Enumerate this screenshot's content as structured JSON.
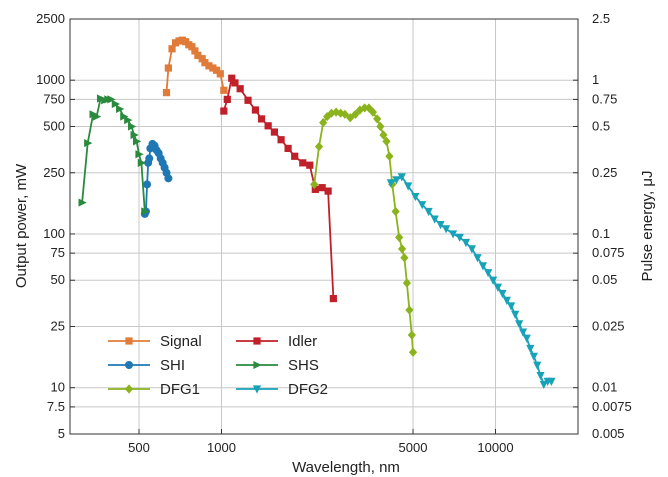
{
  "chart_data": {
    "type": "line",
    "title": "",
    "xlabel": "Wavelength, nm",
    "ylabel": "Output power, mW",
    "y2label": "Pulse energy, μJ",
    "xscale": "log",
    "yscale": "log",
    "xlim": [
      280,
      20000
    ],
    "ylim": [
      5,
      2500
    ],
    "y2lim": [
      0.005,
      2.5
    ],
    "grid": true,
    "legend_position": "bottom-left",
    "xticks": [
      {
        "value": 500,
        "label": "500"
      },
      {
        "value": 1000,
        "label": "1000"
      },
      {
        "value": 5000,
        "label": "5000"
      },
      {
        "value": 10000,
        "label": "10000"
      }
    ],
    "yticks": [
      {
        "value": 2500,
        "label": "2500"
      },
      {
        "value": 1000,
        "label": "1000"
      },
      {
        "value": 750,
        "label": "750"
      },
      {
        "value": 500,
        "label": "500"
      },
      {
        "value": 250,
        "label": "250"
      },
      {
        "value": 100,
        "label": "100"
      },
      {
        "value": 75,
        "label": "75"
      },
      {
        "value": 50,
        "label": "50"
      },
      {
        "value": 25,
        "label": "25"
      },
      {
        "value": 10,
        "label": "10"
      },
      {
        "value": 7.5,
        "label": "7.5"
      },
      {
        "value": 5,
        "label": "5"
      }
    ],
    "y2ticks": [
      {
        "value": 2.5,
        "label": "2.5"
      },
      {
        "value": 1,
        "label": "1"
      },
      {
        "value": 0.75,
        "label": "0.75"
      },
      {
        "value": 0.5,
        "label": "0.5"
      },
      {
        "value": 0.25,
        "label": "0.25"
      },
      {
        "value": 0.1,
        "label": "0.1"
      },
      {
        "value": 0.075,
        "label": "0.075"
      },
      {
        "value": 0.05,
        "label": "0.05"
      },
      {
        "value": 0.025,
        "label": "0.025"
      },
      {
        "value": 0.01,
        "label": "0.01"
      },
      {
        "value": 0.0075,
        "label": "0.0075"
      },
      {
        "value": 0.005,
        "label": "0.005"
      }
    ],
    "series": [
      {
        "name": "Signal",
        "color": "#E07B39",
        "marker": "square",
        "x": [
          630,
          640,
          660,
          680,
          700,
          720,
          740,
          760,
          780,
          800,
          820,
          850,
          870,
          900,
          930,
          960,
          990,
          1020
        ],
        "y": [
          830,
          1200,
          1600,
          1750,
          1800,
          1820,
          1780,
          1700,
          1650,
          1550,
          1450,
          1380,
          1300,
          1240,
          1200,
          1160,
          1100,
          860
        ]
      },
      {
        "name": "Idler",
        "color": "#C0202A",
        "marker": "square",
        "x": [
          1020,
          1050,
          1090,
          1120,
          1170,
          1250,
          1330,
          1400,
          1480,
          1560,
          1650,
          1750,
          1850,
          1980,
          2100,
          2200,
          2330,
          2450,
          2560
        ],
        "y": [
          630,
          750,
          1030,
          960,
          880,
          740,
          640,
          560,
          505,
          460,
          410,
          360,
          320,
          290,
          280,
          195,
          200,
          190,
          38
        ]
      },
      {
        "name": "SHI",
        "color": "#1F77B4",
        "marker": "circle",
        "x": [
          525,
          530,
          535,
          540,
          545,
          550,
          560,
          570,
          580,
          590,
          600,
          610,
          620,
          630,
          640
        ],
        "y": [
          135,
          140,
          210,
          290,
          310,
          360,
          385,
          375,
          350,
          335,
          310,
          290,
          270,
          250,
          230
        ]
      },
      {
        "name": "SHS",
        "color": "#2A8A3E",
        "marker": "triangle-right",
        "x": [
          310,
          325,
          340,
          350,
          362,
          375,
          385,
          395,
          410,
          425,
          440,
          455,
          470,
          480,
          490,
          500,
          510,
          525
        ],
        "y": [
          160,
          390,
          600,
          580,
          760,
          740,
          750,
          750,
          700,
          650,
          580,
          550,
          500,
          440,
          400,
          330,
          290,
          140
        ]
      },
      {
        "name": "DFG1",
        "color": "#8BB31D",
        "marker": "diamond",
        "x": [
          2180,
          2270,
          2350,
          2430,
          2520,
          2620,
          2720,
          2820,
          2950,
          3080,
          3200,
          3330,
          3450,
          3570,
          3700,
          3800,
          3900,
          4000,
          4100,
          4200,
          4320,
          4450,
          4560,
          4650,
          4750,
          4850,
          4950,
          5000
        ],
        "y": [
          210,
          370,
          530,
          580,
          610,
          620,
          610,
          600,
          570,
          600,
          640,
          660,
          660,
          620,
          560,
          500,
          440,
          400,
          320,
          210,
          140,
          95,
          80,
          70,
          48,
          32,
          22,
          17
        ]
      },
      {
        "name": "DFG2",
        "color": "#17A2B8",
        "marker": "triangle-down",
        "x": [
          4150,
          4350,
          4550,
          4800,
          5100,
          5400,
          5700,
          6000,
          6300,
          6600,
          7000,
          7400,
          7800,
          8200,
          8600,
          9000,
          9400,
          9800,
          10200,
          10600,
          11000,
          11400,
          11800,
          12200,
          12600,
          13000,
          13400,
          13800,
          14200,
          14600,
          15000,
          15500,
          16000
        ],
        "y": [
          215,
          225,
          235,
          205,
          175,
          155,
          140,
          125,
          115,
          108,
          100,
          95,
          88,
          80,
          70,
          62,
          56,
          50,
          45,
          41,
          37,
          34,
          30,
          26,
          23,
          21,
          18,
          16,
          14,
          12,
          10.5,
          11,
          11
        ]
      }
    ]
  }
}
